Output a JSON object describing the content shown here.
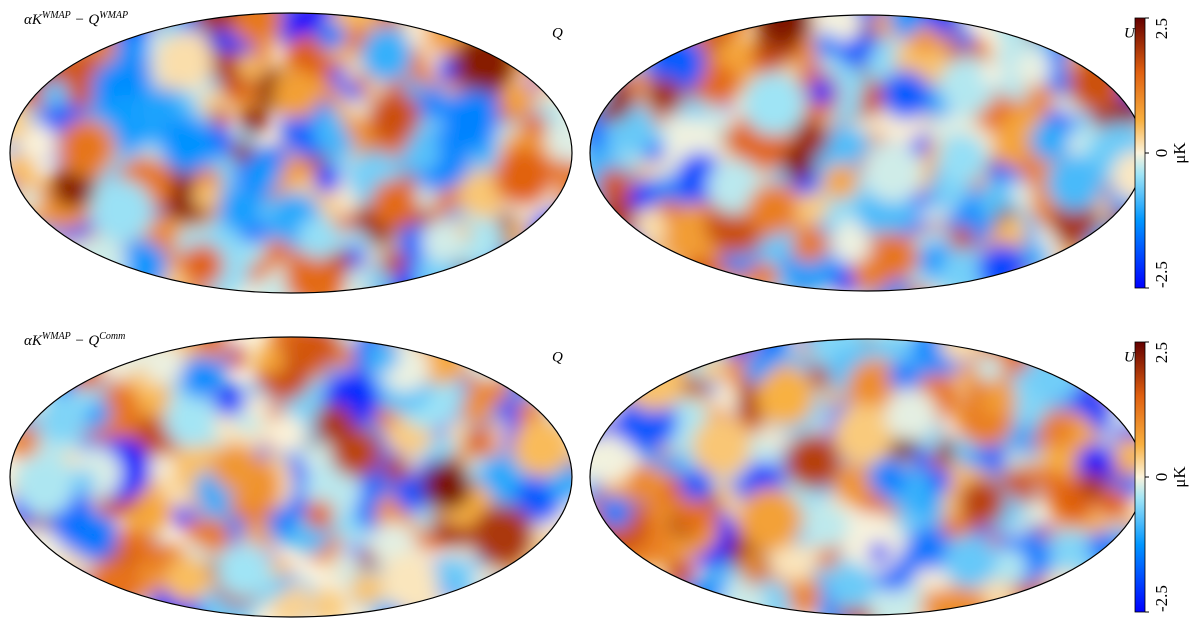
{
  "rows": [
    {
      "panels": [
        {
          "title_parts": [
            "αK",
            "WMAP",
            " − Q",
            "WMAP"
          ],
          "stokes": "Q"
        },
        {
          "stokes": "U"
        }
      ],
      "colorbar": {
        "lim": [
          -2.5,
          2.5
        ],
        "ticks": [
          -2.5,
          0,
          2.5
        ],
        "label": "μK"
      }
    },
    {
      "panels": [
        {
          "title_parts": [
            "αK",
            "WMAP",
            " − Q",
            "Comm"
          ],
          "stokes": "Q"
        },
        {
          "stokes": "U"
        }
      ],
      "colorbar": {
        "lim": [
          -2.5,
          2.5
        ],
        "ticks": [
          -2.5,
          0,
          2.5
        ],
        "label": "μK"
      }
    }
  ]
}
